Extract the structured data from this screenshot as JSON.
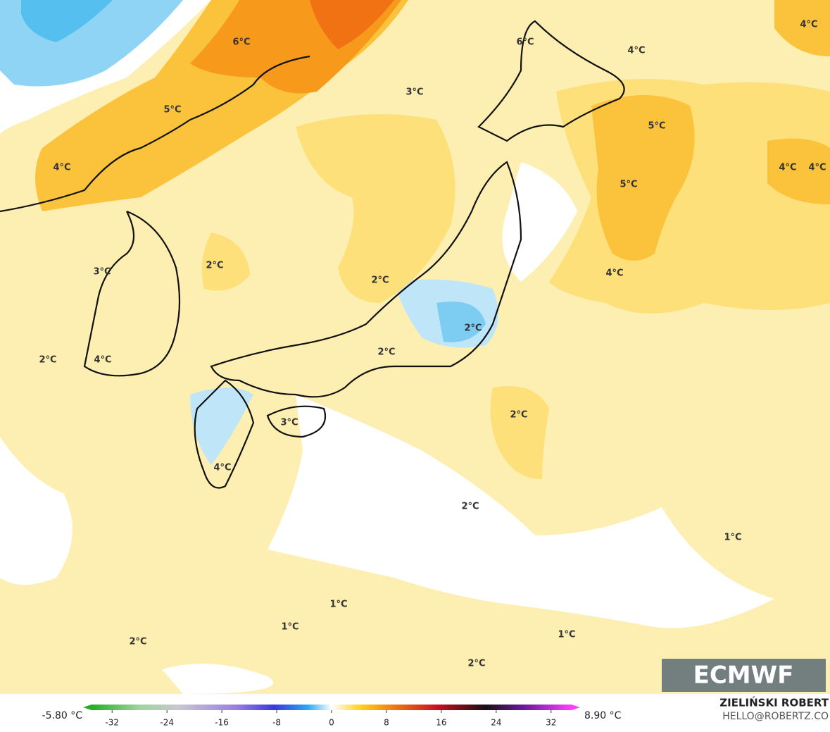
{
  "map": {
    "labels": [
      "6°C",
      "5°C",
      "4°C",
      "3°C",
      "2°C",
      "2°C",
      "4°C",
      "6°C",
      "3°C",
      "4°C",
      "4°C",
      "5°C",
      "5°C",
      "4°C",
      "4°C",
      "4°C",
      "2°C",
      "2°C",
      "2°C",
      "3°C",
      "4°C",
      "2°C",
      "2°C",
      "1°C",
      "1°C",
      "1°C",
      "1°C",
      "2°C",
      "2°C"
    ]
  },
  "logo": "ECMWF",
  "colorbar": {
    "min_label": "-5.80 °C",
    "max_label": "8.90 °C",
    "lim": [
      -35,
      35
    ],
    "ticks": [
      -32,
      -24,
      -16,
      -8,
      0,
      8,
      16,
      24,
      32
    ]
  },
  "credits": {
    "author": "ZIELIŃSKI ROBERT",
    "contact": "HELLO@ROBERTZ.CO"
  }
}
